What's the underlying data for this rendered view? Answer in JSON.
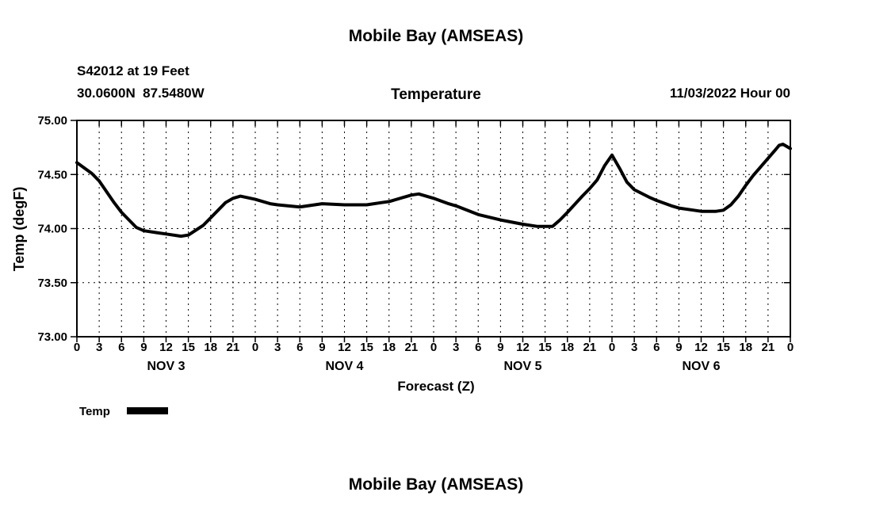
{
  "page": {
    "background": "#ffffff"
  },
  "second_chart_title": "Mobile Bay (AMSEAS)",
  "chart_data": {
    "type": "line",
    "title": "Mobile Bay (AMSEAS)",
    "subtitle": "Temperature",
    "station": "S42012 at 19 Feet",
    "location": "30.0600N  87.5480W",
    "datetime": "11/03/2022 Hour 00",
    "xlabel": "Forecast (Z)",
    "ylabel": "Temp (degF)",
    "xlim": [
      0,
      96
    ],
    "ylim": [
      73.0,
      75.0
    ],
    "grid": true,
    "legend_position": "bottom-left",
    "x_tick_step": 3,
    "x_tick_labels": [
      "0",
      "3",
      "6",
      "9",
      "12",
      "15",
      "18",
      "21",
      "0",
      "3",
      "6",
      "9",
      "12",
      "15",
      "18",
      "21",
      "0",
      "3",
      "6",
      "9",
      "12",
      "15",
      "18",
      "21",
      "0",
      "3",
      "6",
      "9",
      "12",
      "15",
      "18",
      "21",
      "0"
    ],
    "y_ticks": [
      73.0,
      73.5,
      74.0,
      74.5,
      75.0
    ],
    "day_labels": [
      {
        "label": "NOV 3",
        "hour": 12
      },
      {
        "label": "NOV 4",
        "hour": 36
      },
      {
        "label": "NOV 5",
        "hour": 60
      },
      {
        "label": "NOV 6",
        "hour": 84
      }
    ],
    "series": [
      {
        "name": "Temp",
        "color": "#000000",
        "points": [
          [
            0,
            74.61
          ],
          [
            2,
            74.51
          ],
          [
            3,
            74.44
          ],
          [
            5,
            74.24
          ],
          [
            6,
            74.15
          ],
          [
            8,
            74.01
          ],
          [
            9,
            73.98
          ],
          [
            11,
            73.96
          ],
          [
            12,
            73.95
          ],
          [
            14,
            73.93
          ],
          [
            15,
            73.94
          ],
          [
            17,
            74.03
          ],
          [
            18,
            74.1
          ],
          [
            20,
            74.24
          ],
          [
            21,
            74.28
          ],
          [
            22,
            74.3
          ],
          [
            24,
            74.27
          ],
          [
            26,
            74.23
          ],
          [
            27,
            74.22
          ],
          [
            30,
            74.2
          ],
          [
            32,
            74.22
          ],
          [
            33,
            74.23
          ],
          [
            36,
            74.22
          ],
          [
            39,
            74.22
          ],
          [
            41,
            74.24
          ],
          [
            42,
            74.25
          ],
          [
            44,
            74.29
          ],
          [
            45,
            74.31
          ],
          [
            46,
            74.32
          ],
          [
            48,
            74.28
          ],
          [
            50,
            74.23
          ],
          [
            51,
            74.21
          ],
          [
            54,
            74.13
          ],
          [
            57,
            74.08
          ],
          [
            60,
            74.04
          ],
          [
            62,
            74.02
          ],
          [
            64,
            74.02
          ],
          [
            65,
            74.08
          ],
          [
            66,
            74.15
          ],
          [
            68,
            74.3
          ],
          [
            69,
            74.37
          ],
          [
            70,
            74.45
          ],
          [
            71,
            74.58
          ],
          [
            72,
            74.68
          ],
          [
            73,
            74.56
          ],
          [
            74,
            74.43
          ],
          [
            75,
            74.36
          ],
          [
            77,
            74.29
          ],
          [
            78,
            74.26
          ],
          [
            80,
            74.21
          ],
          [
            81,
            74.19
          ],
          [
            83,
            74.17
          ],
          [
            84,
            74.16
          ],
          [
            86,
            74.16
          ],
          [
            87,
            74.17
          ],
          [
            88,
            74.22
          ],
          [
            89,
            74.3
          ],
          [
            90,
            74.4
          ],
          [
            91,
            74.49
          ],
          [
            92,
            74.57
          ],
          [
            93,
            74.65
          ],
          [
            94,
            74.73
          ],
          [
            94.5,
            74.77
          ],
          [
            95,
            74.78
          ],
          [
            96,
            74.74
          ]
        ]
      }
    ]
  }
}
